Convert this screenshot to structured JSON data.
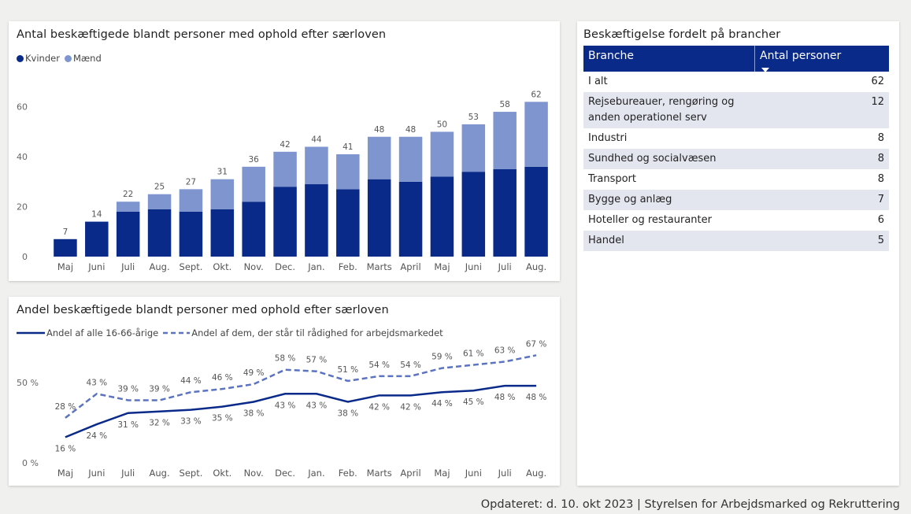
{
  "chart_data": [
    {
      "type": "bar",
      "title": "Antal beskæftigede blandt personer med ophold efter særloven",
      "categories": [
        "Maj",
        "Juni",
        "Juli",
        "Aug.",
        "Sept.",
        "Okt.",
        "Nov.",
        "Dec.",
        "Jan.",
        "Feb.",
        "Marts",
        "April",
        "Maj",
        "Juni",
        "Juli",
        "Aug."
      ],
      "series": [
        {
          "name": "Kvinder",
          "color": "#0a2a8a",
          "values": [
            7,
            14,
            18,
            19,
            18,
            19,
            22,
            28,
            29,
            27,
            31,
            30,
            32,
            34,
            35,
            36
          ]
        },
        {
          "name": "Mænd",
          "color": "#7f95cf",
          "values": [
            0,
            0,
            4,
            6,
            9,
            12,
            14,
            14,
            15,
            14,
            17,
            18,
            18,
            19,
            23,
            26
          ]
        }
      ],
      "totals": [
        "7",
        "14",
        "22",
        "25",
        "27",
        "31",
        "36",
        "42",
        "44",
        "41",
        "48",
        "48",
        "50",
        "53",
        "58",
        "62"
      ],
      "yticks": [
        "0",
        "20",
        "40",
        "60"
      ],
      "ylim": [
        0,
        70
      ],
      "stacked": true,
      "legend_position": "top-left"
    },
    {
      "type": "line",
      "title": "Andel beskæftigede blandt personer med ophold efter særloven",
      "categories": [
        "Maj",
        "Juni",
        "Juli",
        "Aug.",
        "Sept.",
        "Okt.",
        "Nov.",
        "Dec.",
        "Jan.",
        "Feb.",
        "Marts",
        "April",
        "Maj",
        "Juni",
        "Juli",
        "Aug."
      ],
      "series": [
        {
          "name": "Andel af alle 16-66-årige",
          "style": "solid",
          "color": "#0a2a8a",
          "values": [
            16,
            24,
            31,
            32,
            33,
            35,
            38,
            43,
            43,
            38,
            42,
            42,
            44,
            45,
            48,
            48
          ],
          "labels": [
            "16 %",
            "24 %",
            "31 %",
            "32 %",
            "33 %",
            "35 %",
            "38 %",
            "43 %",
            "43 %",
            "38 %",
            "42 %",
            "42 %",
            "44 %",
            "45 %",
            "48 %",
            "48 %"
          ]
        },
        {
          "name": "Andel af dem, der står til rådighed for arbejdsmarkedet",
          "style": "dashed",
          "color": "#5b73c0",
          "values": [
            28,
            43,
            39,
            39,
            44,
            46,
            49,
            58,
            57,
            51,
            54,
            54,
            59,
            61,
            63,
            67
          ],
          "labels": [
            "28 %",
            "43 %",
            "39 %",
            "39 %",
            "44 %",
            "46 %",
            "49 %",
            "58 %",
            "57 %",
            "51 %",
            "54 %",
            "54 %",
            "59 %",
            "61 %",
            "63 %",
            "67 %"
          ]
        }
      ],
      "yticks": [
        "0 %",
        "50 %"
      ],
      "ylim": [
        0,
        75
      ],
      "legend_position": "top-left"
    },
    {
      "type": "table",
      "title": "Beskæftigelse fordelt på brancher",
      "columns": [
        "Branche",
        "Antal personer"
      ],
      "rows": [
        [
          "I alt",
          "62"
        ],
        [
          "Rejsebureauer, rengøring og anden operationel serv",
          "12"
        ],
        [
          "Industri",
          "8"
        ],
        [
          "Sundhed og socialvæsen",
          "8"
        ],
        [
          "Transport",
          "8"
        ],
        [
          "Bygge og anlæg",
          "7"
        ],
        [
          "Hoteller og restauranter",
          "6"
        ],
        [
          "Handel",
          "5"
        ]
      ],
      "sorted_by": "Antal personer"
    }
  ],
  "footer": "Opdateret: d. 10. okt 2023 | Styrelsen for Arbejdsmarked og Rekruttering"
}
